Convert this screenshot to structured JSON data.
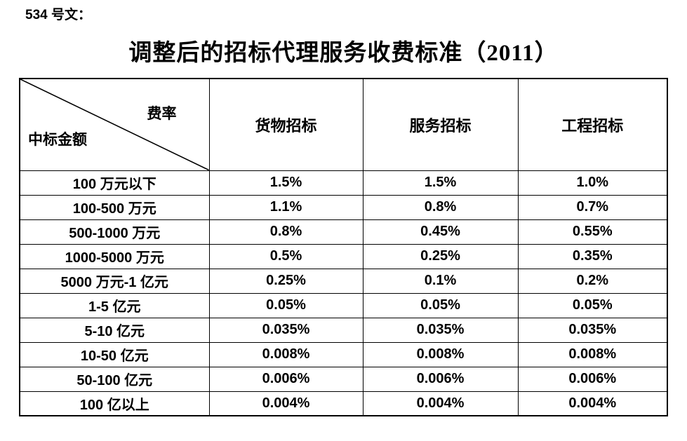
{
  "page": {
    "doc_label": "534 号文：",
    "title": "调整后的招标代理服务收费标准（2011）"
  },
  "table": {
    "corner": {
      "top_right": "费率",
      "bottom_left": "中标金额"
    },
    "columns": [
      "货物招标",
      "服务招标",
      "工程招标"
    ],
    "rows": [
      {
        "amount": "100 万元以下",
        "goods": "1.5%",
        "service": "1.5%",
        "engineering": "1.0%"
      },
      {
        "amount": "100-500 万元",
        "goods": "1.1%",
        "service": "0.8%",
        "engineering": "0.7%"
      },
      {
        "amount": "500-1000 万元",
        "goods": "0.8%",
        "service": "0.45%",
        "engineering": "0.55%"
      },
      {
        "amount": "1000-5000 万元",
        "goods": "0.5%",
        "service": "0.25%",
        "engineering": "0.35%"
      },
      {
        "amount": "5000 万元-1 亿元",
        "goods": "0.25%",
        "service": "0.1%",
        "engineering": "0.2%"
      },
      {
        "amount": "1-5 亿元",
        "goods": "0.05%",
        "service": "0.05%",
        "engineering": "0.05%"
      },
      {
        "amount": "5-10 亿元",
        "goods": "0.035%",
        "service": "0.035%",
        "engineering": "0.035%"
      },
      {
        "amount": "10-50 亿元",
        "goods": "0.008%",
        "service": "0.008%",
        "engineering": "0.008%"
      },
      {
        "amount": "50-100 亿元",
        "goods": "0.006%",
        "service": "0.006%",
        "engineering": "0.006%"
      },
      {
        "amount": "100 亿以上",
        "goods": "0.004%",
        "service": "0.004%",
        "engineering": "0.004%"
      }
    ]
  }
}
